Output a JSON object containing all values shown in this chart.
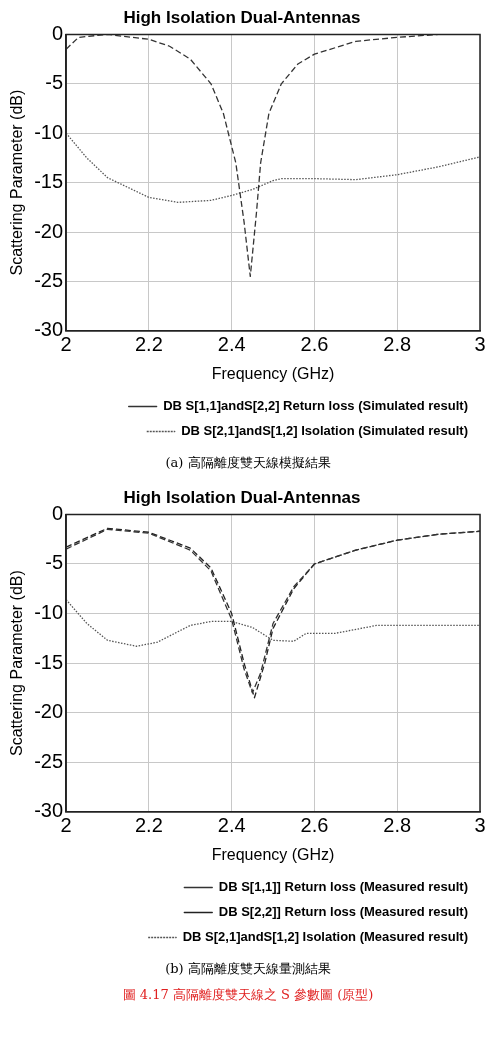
{
  "chart_data": [
    {
      "type": "line",
      "title": "High Isolation Dual-Antennas",
      "xlabel": "Frequency (GHz)",
      "ylabel": "Scattering Parameter (dB)",
      "xlim": [
        2,
        3
      ],
      "ylim": [
        -30,
        0
      ],
      "xticks": [
        2,
        2.2,
        2.4,
        2.6,
        2.8,
        3
      ],
      "yticks": [
        0,
        -5,
        -10,
        -15,
        -20,
        -25,
        -30
      ],
      "grid": true,
      "legend": "bottom",
      "marker": "none",
      "series": [
        {
          "name": "DB S[1,1]andS[2,2] Return loss (Simulated result)",
          "color": "#333333",
          "line_style": "dashed",
          "x": [
            2,
            2.03,
            2.1,
            2.2,
            2.25,
            2.3,
            2.35,
            2.38,
            2.41,
            2.43,
            2.445,
            2.46,
            2.47,
            2.49,
            2.52,
            2.56,
            2.6,
            2.7,
            2.8,
            2.9,
            3
          ],
          "values": [
            -1.5,
            -0.3,
            0,
            -0.5,
            -1.2,
            -2.5,
            -5,
            -8,
            -13,
            -19,
            -24.5,
            -18,
            -13,
            -8,
            -5,
            -3,
            -2,
            -0.7,
            -0.3,
            0,
            0
          ]
        },
        {
          "name": "DB S[2,1]andS[1,2] Isolation (Simulated result)",
          "color": "#555555",
          "line_style": "dotted",
          "x": [
            2,
            2.05,
            2.1,
            2.2,
            2.27,
            2.35,
            2.4,
            2.45,
            2.5,
            2.52,
            2.6,
            2.7,
            2.8,
            2.9,
            3
          ],
          "values": [
            -10,
            -12.5,
            -14.5,
            -16.5,
            -17,
            -16.8,
            -16.3,
            -15.7,
            -14.8,
            -14.6,
            -14.6,
            -14.7,
            -14.2,
            -13.4,
            -12.4
          ]
        }
      ],
      "annotations": [
        "(a) 高隔離度雙天線模擬結果"
      ]
    },
    {
      "type": "line",
      "title": "High Isolation Dual-Antennas",
      "xlabel": "Frequency (GHz)",
      "ylabel": "Scattering Parameter (dB)",
      "xlim": [
        2,
        3
      ],
      "ylim": [
        -30,
        0
      ],
      "xticks": [
        2,
        2.2,
        2.4,
        2.6,
        2.8,
        3
      ],
      "yticks": [
        0,
        -5,
        -10,
        -15,
        -20,
        -25,
        -30
      ],
      "grid": true,
      "legend": "bottom",
      "marker": "none",
      "series": [
        {
          "name": "DB S[1,1]] Return loss (Measured result)",
          "color": "#333333",
          "line_style": "dashed",
          "x": [
            2,
            2.1,
            2.2,
            2.3,
            2.35,
            2.4,
            2.43,
            2.45,
            2.47,
            2.5,
            2.55,
            2.6,
            2.7,
            2.8,
            2.9,
            3
          ],
          "values": [
            -3.5,
            -1.5,
            -1.9,
            -3.6,
            -5.7,
            -10.6,
            -15.6,
            -18,
            -16,
            -11,
            -7.3,
            -5,
            -3.6,
            -2.6,
            -2,
            -1.7
          ]
        },
        {
          "name": "DB S[2,2]] Return loss (Measured result)",
          "color": "#222222",
          "line_style": "dashed",
          "x": [
            2,
            2.1,
            2.2,
            2.3,
            2.35,
            2.4,
            2.43,
            2.455,
            2.48,
            2.5,
            2.55,
            2.6,
            2.7,
            2.8,
            2.9,
            3
          ],
          "values": [
            -3.3,
            -1.4,
            -1.8,
            -3.4,
            -5.4,
            -10,
            -15,
            -18.5,
            -15,
            -11.5,
            -7.5,
            -5,
            -3.6,
            -2.6,
            -2,
            -1.7
          ]
        },
        {
          "name": "DB S[2,1]andS[1,2] Isolation (Measured result)",
          "color": "#555555",
          "line_style": "dotted",
          "x": [
            2,
            2.05,
            2.1,
            2.17,
            2.22,
            2.3,
            2.35,
            2.4,
            2.45,
            2.5,
            2.55,
            2.58,
            2.65,
            2.75,
            2.85,
            3
          ],
          "values": [
            -8.6,
            -11,
            -12.7,
            -13.3,
            -12.9,
            -11.2,
            -10.8,
            -10.8,
            -11.4,
            -12.7,
            -12.8,
            -12,
            -12,
            -11.2,
            -11.2,
            -11.2
          ]
        }
      ],
      "annotations": [
        "(b) 高隔離度雙天線量測結果",
        "圖 4.17 高隔離度雙天線之 S 參數圖 (原型)"
      ]
    }
  ]
}
